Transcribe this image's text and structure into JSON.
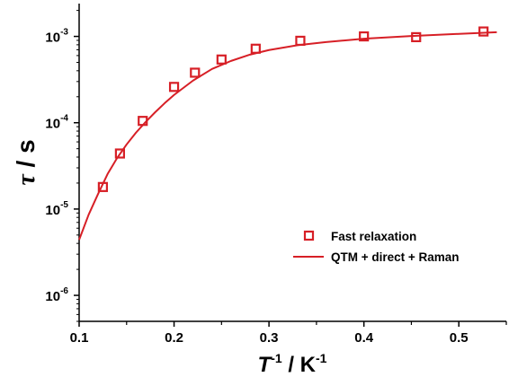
{
  "chart_data": {
    "type": "scatter",
    "xlabel": {
      "main": "T",
      "sup": "-1",
      "rest": " / K",
      "sup2": "-1"
    },
    "ylabel": {
      "main": "τ",
      "rest": " / s"
    },
    "xlim": [
      0.1,
      0.55
    ],
    "ylim": [
      5e-07,
      0.0024
    ],
    "yscale": "log",
    "x_ticks": [
      0.1,
      0.2,
      0.3,
      0.4,
      0.5
    ],
    "x_tick_labels": [
      "0.1",
      "0.2",
      "0.3",
      "0.4",
      "0.5"
    ],
    "y_ticks": [
      1e-06,
      1e-05,
      0.0001,
      0.001
    ],
    "y_tick_labels": [
      {
        "base": "10",
        "exp": "-6"
      },
      {
        "base": "10",
        "exp": "-5"
      },
      {
        "base": "10",
        "exp": "-4"
      },
      {
        "base": "10",
        "exp": "-3"
      }
    ],
    "grid": false,
    "legend_position": "center-right",
    "color": "#d71f26",
    "series": [
      {
        "name": "Fast relaxation",
        "kind": "scatter",
        "marker": "open-square",
        "x": [
          0.125,
          0.143,
          0.167,
          0.2,
          0.222,
          0.25,
          0.286,
          0.333,
          0.4,
          0.455,
          0.526
        ],
        "y": [
          1.8e-05,
          4.4e-05,
          0.000105,
          0.00026,
          0.00038,
          0.00054,
          0.00072,
          0.00089,
          0.001,
          0.00098,
          0.00114
        ]
      },
      {
        "name": "QTM + direct + Raman",
        "kind": "line",
        "x": [
          0.1,
          0.11,
          0.12,
          0.13,
          0.14,
          0.15,
          0.16,
          0.17,
          0.18,
          0.19,
          0.2,
          0.22,
          0.24,
          0.26,
          0.28,
          0.3,
          0.33,
          0.36,
          0.4,
          0.45,
          0.5,
          0.54
        ],
        "y": [
          4.4e-06,
          8.6e-06,
          1.5e-05,
          2.55e-05,
          3.9e-05,
          5.6e-05,
          7.7e-05,
          0.000102,
          0.000132,
          0.000168,
          0.00021,
          0.000308,
          0.00042,
          0.00052,
          0.000615,
          0.000695,
          0.00079,
          0.00086,
          0.00094,
          0.00101,
          0.00107,
          0.00112
        ]
      }
    ]
  }
}
